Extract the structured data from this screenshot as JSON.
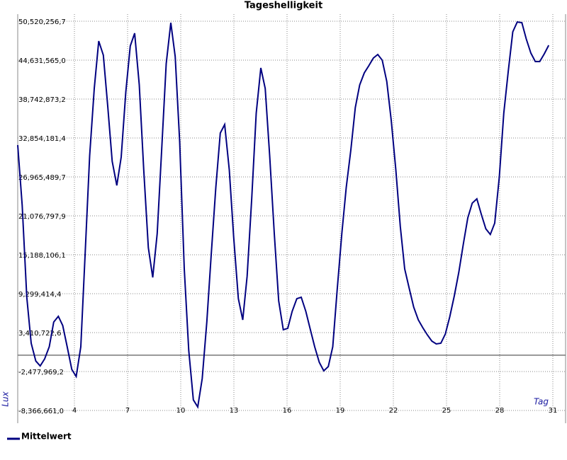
{
  "chart_data": {
    "type": "line",
    "title": "Tageshelligkeit",
    "x_label": "Tag",
    "y_label": "Lux",
    "xlim": [
      0.8,
      31.6
    ],
    "xticks": [
      4,
      7,
      10,
      13,
      16,
      19,
      22,
      25,
      28,
      31
    ],
    "ylim": [
      -8366661.0,
      50520256.7
    ],
    "yticks": [
      {
        "value": -8366661.0,
        "label": "-8,366,661,0"
      },
      {
        "value": -2477969.2,
        "label": "-2,477,969,2"
      },
      {
        "value": 3410722.6,
        "label": "3,410,722,6"
      },
      {
        "value": 9299414.4,
        "label": "9,299,414,4"
      },
      {
        "value": 15188106.1,
        "label": "15,188,106,1"
      },
      {
        "value": 21076797.9,
        "label": "21,076,797,9"
      },
      {
        "value": 26965489.7,
        "label": "26,965,489,7"
      },
      {
        "value": 32854181.4,
        "label": "32,854,181,4"
      },
      {
        "value": 38742873.2,
        "label": "38,742,873,2"
      },
      {
        "value": 44631565.0,
        "label": "44,631,565,0"
      },
      {
        "value": 50520256.7,
        "label": "50,520,256,7"
      }
    ],
    "grid": true,
    "legend": "bottom-left",
    "x": [
      0.8,
      1.05,
      1.31,
      1.56,
      1.82,
      2.07,
      2.32,
      2.58,
      2.83,
      3.09,
      3.34,
      3.59,
      3.85,
      4.1,
      4.36,
      4.61,
      4.86,
      5.12,
      5.37,
      5.63,
      5.88,
      6.13,
      6.39,
      6.64,
      6.9,
      7.15,
      7.4,
      7.66,
      7.91,
      8.17,
      8.42,
      8.67,
      8.93,
      9.18,
      9.44,
      9.69,
      9.94,
      10.2,
      10.45,
      10.71,
      10.96,
      11.21,
      11.47,
      11.72,
      11.98,
      12.23,
      12.48,
      12.74,
      12.99,
      13.25,
      13.5,
      13.75,
      14.01,
      14.26,
      14.52,
      14.77,
      15.02,
      15.28,
      15.53,
      15.79,
      16.04,
      16.29,
      16.55,
      16.8,
      17.06,
      17.31,
      17.56,
      17.82,
      18.07,
      18.33,
      18.58,
      18.83,
      19.09,
      19.34,
      19.6,
      19.85,
      20.1,
      20.36,
      20.61,
      20.87,
      21.12,
      21.37,
      21.63,
      21.88,
      22.14,
      22.39,
      22.64,
      22.9,
      23.15,
      23.41,
      23.66,
      23.91,
      24.17,
      24.42,
      24.68,
      24.93,
      25.18,
      25.44,
      25.69,
      25.95,
      26.2,
      26.45,
      26.71,
      26.96,
      27.22,
      27.47,
      27.72,
      27.98,
      28.23,
      28.49,
      28.74,
      28.99,
      29.25,
      29.5,
      29.76,
      30.01,
      30.26,
      30.52,
      30.77
    ],
    "series": [
      {
        "name": "Mittelwert",
        "color": "#000080",
        "values": [
          31780000,
          22680000,
          8760000,
          1800000,
          -880000,
          -1630000,
          -560000,
          1270000,
          5020000,
          5870000,
          4480000,
          1270000,
          -2160000,
          -3230000,
          1270000,
          15720000,
          30180000,
          40350000,
          47520000,
          45380000,
          37670000,
          29320000,
          25680000,
          29960000,
          39810000,
          46770000,
          48700000,
          40880000,
          28040000,
          16260000,
          11760000,
          18400000,
          31250000,
          44100000,
          50300000,
          45170000,
          32320000,
          13050000,
          730000,
          -6760000,
          -7830000,
          -3550000,
          5020000,
          15190000,
          25360000,
          33600000,
          34890000,
          28040000,
          17860000,
          8550000,
          5340000,
          11970000,
          23750000,
          36600000,
          43450000,
          40350000,
          30180000,
          18400000,
          8230000,
          3840000,
          4050000,
          6620000,
          8550000,
          8760000,
          6620000,
          3950000,
          1270000,
          -1090000,
          -2370000,
          -1730000,
          1270000,
          9830000,
          18400000,
          25360000,
          31030000,
          37460000,
          40880000,
          42700000,
          43770000,
          44950000,
          45490000,
          44630000,
          41420000,
          35530000,
          28040000,
          19470000,
          13050000,
          10050000,
          7270000,
          5340000,
          4160000,
          3090000,
          2130000,
          1700000,
          1800000,
          3200000,
          5770000,
          8980000,
          12510000,
          16790000,
          20760000,
          23000000,
          23650000,
          21340000,
          19110000,
          18260000,
          19970000,
          26970000,
          36600000,
          43030000,
          48910000,
          50400000,
          50310000,
          47840000,
          45700000,
          44420000,
          44420000,
          45600000,
          46880000
        ]
      }
    ]
  }
}
